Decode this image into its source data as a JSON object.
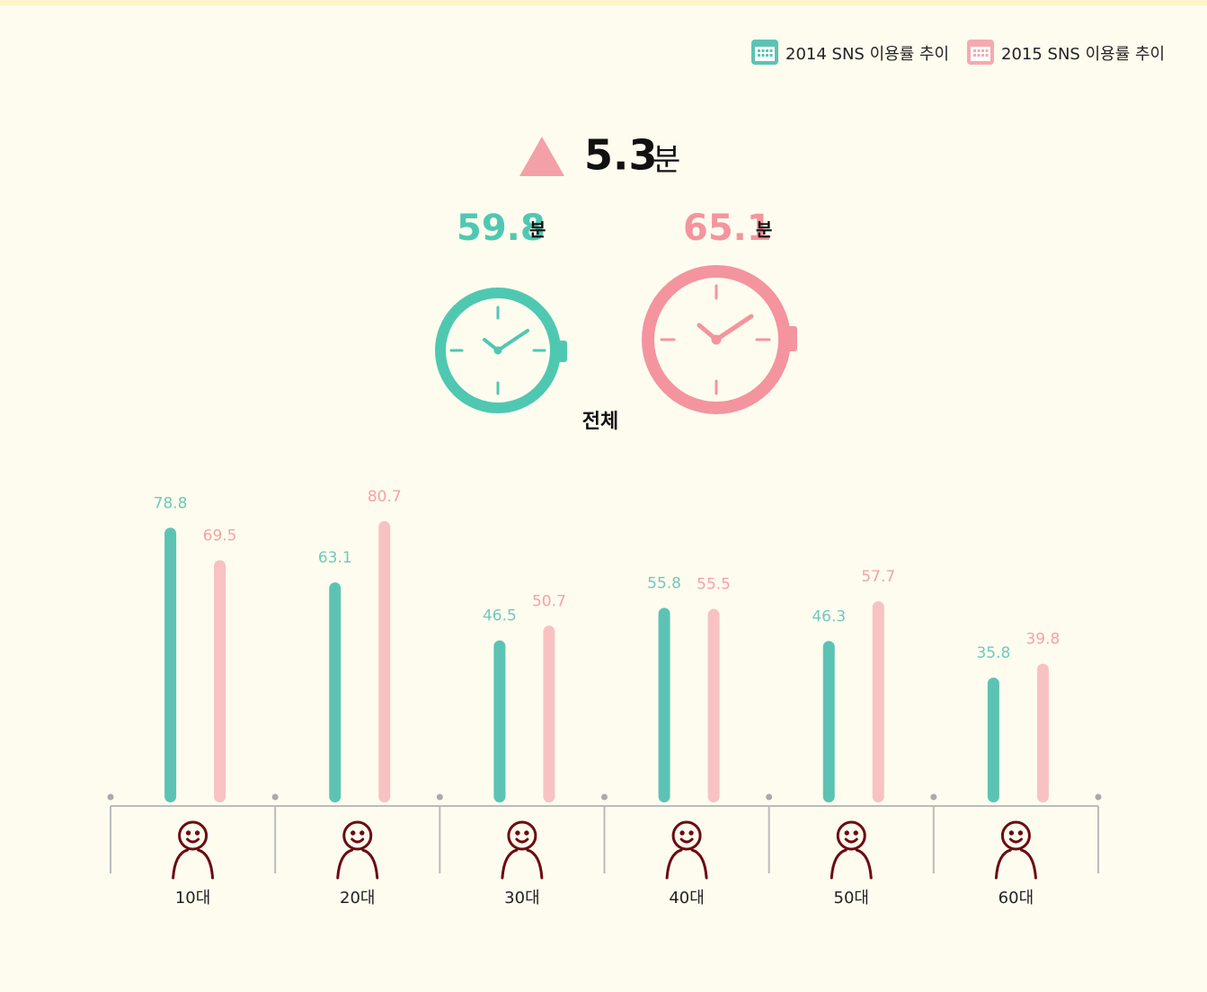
{
  "chart_data": {
    "type": "bar",
    "summary": {
      "change": 5.3,
      "change_unit": "분",
      "totals": [
        59.8,
        65.1
      ],
      "total_unit": "분",
      "total_label": "전체"
    },
    "categories": [
      "10대",
      "20대",
      "30대",
      "40대",
      "50대",
      "60대"
    ],
    "series": [
      {
        "name": "2014 SNS 이용률 추이",
        "color": "#5cc3b4",
        "values": [
          78.8,
          63.1,
          46.5,
          55.8,
          46.3,
          35.8
        ]
      },
      {
        "name": "2015 SNS 이용률 추이",
        "color": "#f8c2c2",
        "values": [
          69.5,
          80.7,
          50.7,
          55.5,
          57.7,
          39.8
        ]
      }
    ],
    "ylim": [
      0,
      100
    ]
  }
}
